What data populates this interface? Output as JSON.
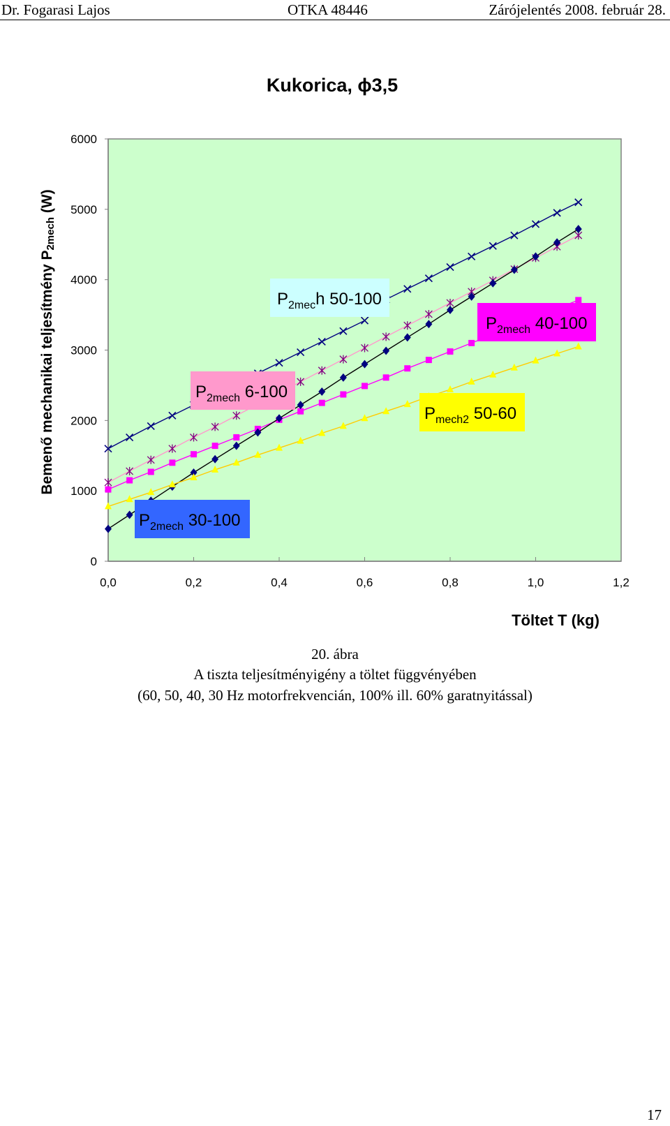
{
  "header": {
    "author": "Dr. Fogarasi Lajos",
    "grant": "OTKA 48446",
    "report": "Zárójelentés 2008. február 28."
  },
  "chart_data": {
    "type": "scatter",
    "title": "Kukorica, ϕ3,5",
    "ylabel": "Bemenő mechanikai teljesítmény P2mech (W)",
    "xlabel": "Töltet T (kg)",
    "xlim": [
      0,
      1.2
    ],
    "ylim": [
      0,
      6000
    ],
    "x_ticks": [
      "0,0",
      "0,2",
      "0,4",
      "0,6",
      "0,8",
      "1,0",
      "1,2"
    ],
    "y_ticks": [
      "0",
      "1000",
      "2000",
      "3000",
      "4000",
      "5000",
      "6000"
    ],
    "plot_background": "#ccffcc",
    "grid": false,
    "x": [
      0.0,
      0.05,
      0.1,
      0.15,
      0.2,
      0.25,
      0.3,
      0.35,
      0.4,
      0.45,
      0.5,
      0.55,
      0.6,
      0.65,
      0.7,
      0.75,
      0.8,
      0.85,
      0.9,
      0.95,
      1.0,
      1.05,
      1.1
    ],
    "series": [
      {
        "label": "P2mech 50-100",
        "color": "#000080",
        "line_color": "#000080",
        "marker": "x",
        "values": [
          1600,
          1760,
          1920,
          2070,
          2220,
          2370,
          2520,
          2670,
          2820,
          2970,
          3120,
          3270,
          3420,
          3720,
          3870,
          4020,
          4180,
          4330,
          4480,
          4630,
          4790,
          4950,
          5100
        ]
      },
      {
        "label": "P2mech 6-100",
        "color": "#800080",
        "line_color": "#ff99cc",
        "marker": "star",
        "values": [
          1120,
          1280,
          1440,
          1600,
          1760,
          1910,
          2070,
          2230,
          2390,
          2550,
          2710,
          2870,
          3030,
          3190,
          3350,
          3510,
          3670,
          3830,
          3990,
          4150,
          4310,
          4470,
          4630
        ]
      },
      {
        "label": "P2mech 40-100",
        "color": "#ff00ff",
        "line_color": "#ff00ff",
        "marker": "square",
        "values": [
          1020,
          1150,
          1270,
          1400,
          1520,
          1640,
          1760,
          1880,
          2010,
          2130,
          2250,
          2370,
          2490,
          2610,
          2740,
          2860,
          2980,
          3100,
          3220,
          3350,
          3470,
          3590,
          3710
        ]
      },
      {
        "label": "P2mech 30-100",
        "color": "#000080",
        "line_color": "#000000",
        "marker": "diamond",
        "values": [
          460,
          660,
          860,
          1060,
          1260,
          1450,
          1640,
          1830,
          2030,
          2220,
          2410,
          2610,
          2800,
          2990,
          3180,
          3370,
          3570,
          3760,
          3950,
          4140,
          4330,
          4530,
          4720
        ]
      },
      {
        "label": "Pmech2 50-60",
        "color": "#ffff00",
        "line_color": "#ffcc00",
        "marker": "triangle",
        "values": [
          780,
          880,
          980,
          1090,
          1190,
          1300,
          1400,
          1510,
          1610,
          1710,
          1820,
          1920,
          2030,
          2130,
          2230,
          2340,
          2440,
          2550,
          2650,
          2750,
          2850,
          2950,
          3050
        ]
      }
    ],
    "annotations": [
      {
        "main": "P",
        "sub": "2mec",
        "rest": "h 50-100",
        "bg": "#ccffff"
      },
      {
        "main": "P",
        "sub": "2mech",
        "rest": " 6-100",
        "bg": "#ff99cc"
      },
      {
        "main": "P",
        "sub": "2mech",
        "rest": " 40-100",
        "bg": "#ff00ff"
      },
      {
        "main": "P",
        "sub": "mech2",
        "rest": " 50-60",
        "bg": "#ffff00"
      },
      {
        "main": "P",
        "sub": "2mech",
        "rest": " 30-100",
        "bg": "#3366ff"
      }
    ]
  },
  "caption": {
    "number": "20. ábra",
    "line1": "A tiszta teljesítményigény a töltet függvényében",
    "line2": "(60, 50, 40, 30 Hz motorfrekvencián, 100% ill. 60% garatnyitással)"
  },
  "page_number": "17"
}
